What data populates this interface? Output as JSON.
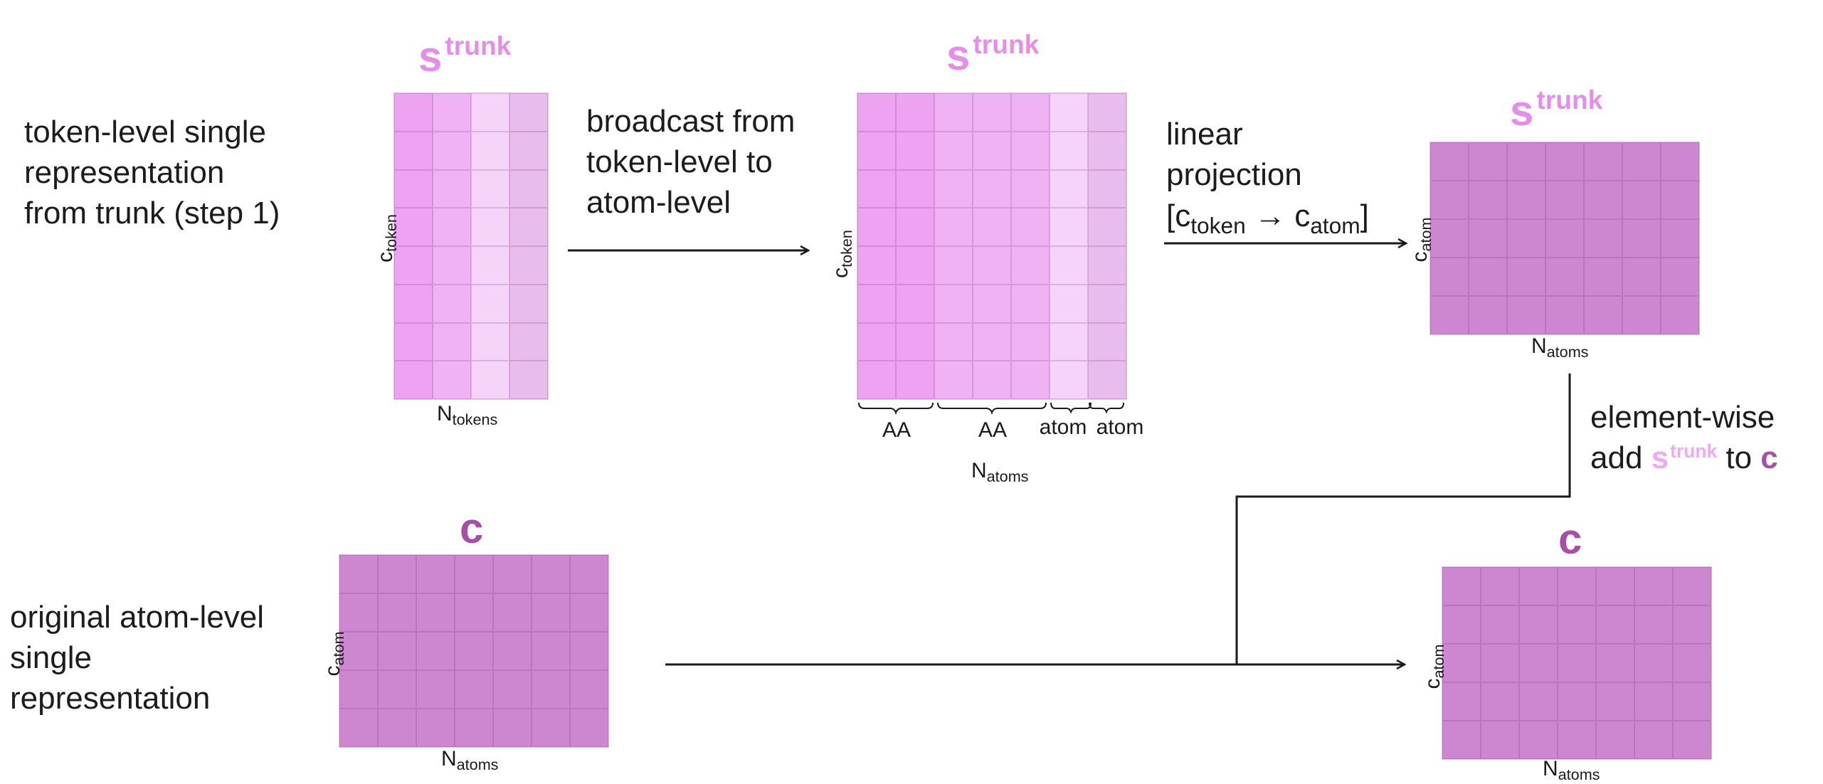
{
  "labels": {
    "step1_desc": [
      "token-level single",
      "representation",
      "from trunk (step 1)"
    ],
    "broadcast_desc": [
      "broadcast from",
      "token-level to",
      "atom-level"
    ],
    "linear_desc": [
      "linear",
      "projection"
    ],
    "linear_formula": {
      "open": "[",
      "c1": "c",
      "c1_sub": "token",
      "arrow": "→",
      "c2": "c",
      "c2_sub": "atom",
      "close": "]"
    },
    "elementwise_desc_line1": "element-wise",
    "elementwise_desc_line2": {
      "add": "add",
      "s": "s",
      "s_sup": "trunk",
      "to": "to",
      "c": "c"
    },
    "original_desc": [
      "original atom-level",
      "single",
      "representation"
    ]
  },
  "titles": {
    "s_base": "s",
    "s_sup": "trunk",
    "c": "c"
  },
  "axes": {
    "c_letter": "c",
    "n_letter": "N",
    "token_sub": "token",
    "atom_sub": "atom",
    "tokens_sub": "tokens",
    "atoms_sub": "atoms"
  },
  "braces": [
    "AA",
    "AA",
    "atom",
    "atom"
  ],
  "colors": {
    "s_title": "#e48ee9",
    "c_title": "#a64ea8",
    "matrix_magenta": "#cd87d0",
    "pink_shades": [
      "#eda3f1",
      "#f0b2f4",
      "#f6d3f9",
      "#e8bcec"
    ]
  }
}
